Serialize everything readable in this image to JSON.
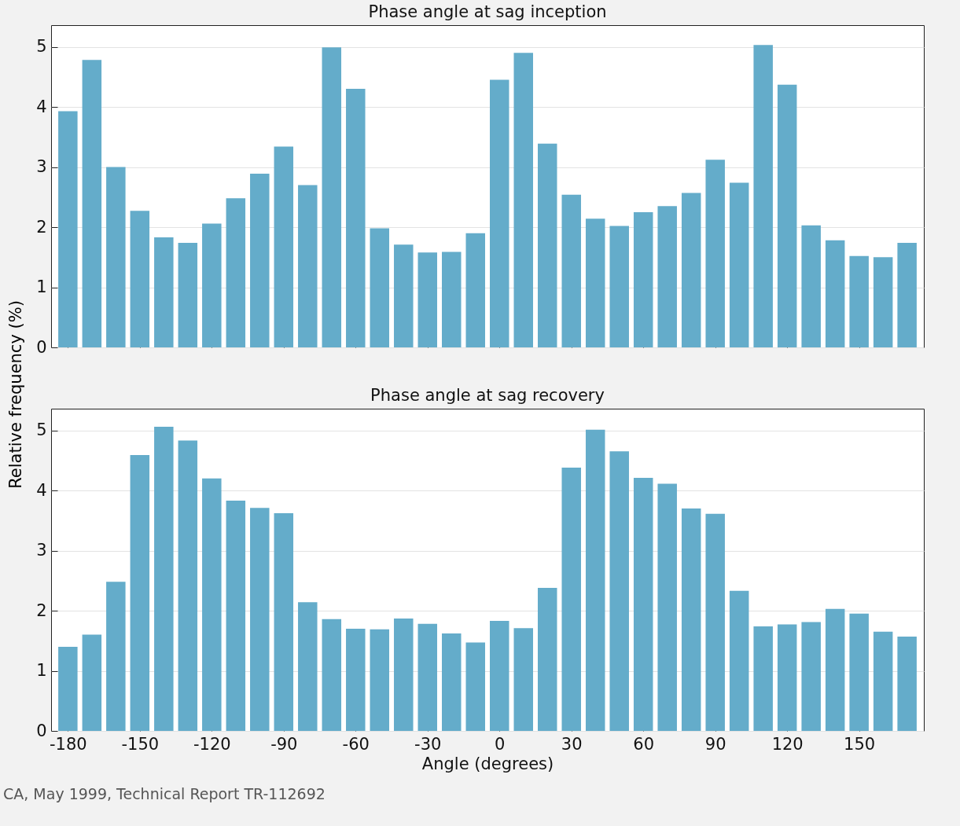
{
  "chart_data": [
    {
      "type": "bar",
      "title": "Phase angle at sag inception",
      "ylabel": "Relative frequency (%)",
      "x": [
        -180,
        -170,
        -160,
        -150,
        -140,
        -130,
        -120,
        -110,
        -100,
        -90,
        -80,
        -70,
        -60,
        -50,
        -40,
        -30,
        -20,
        -10,
        0,
        10,
        20,
        30,
        40,
        50,
        60,
        70,
        80,
        90,
        100,
        110,
        120,
        130,
        140,
        150,
        160,
        170
      ],
      "values": [
        3.93,
        4.78,
        3.0,
        2.27,
        1.83,
        1.74,
        2.06,
        2.48,
        2.89,
        3.34,
        2.7,
        4.99,
        4.3,
        1.98,
        1.71,
        1.58,
        1.59,
        1.9,
        4.45,
        4.9,
        3.39,
        2.54,
        2.14,
        2.02,
        2.25,
        2.35,
        2.57,
        3.12,
        2.74,
        5.03,
        4.37,
        2.03,
        1.78,
        1.52,
        1.5,
        1.74
      ],
      "color": "#64acca",
      "xlim": [
        -187,
        177
      ],
      "xticks": [
        -180,
        -150,
        -120,
        -90,
        -60,
        -30,
        0,
        30,
        60,
        90,
        120,
        150
      ],
      "ylim": [
        0,
        5.36
      ],
      "yticks": [
        0,
        1,
        2,
        3,
        4,
        5
      ],
      "grid": "y",
      "tick_labels": "y"
    },
    {
      "type": "bar",
      "title": "Phase angle at sag recovery",
      "xlabel": "Angle (degrees)",
      "x": [
        -180,
        -170,
        -160,
        -150,
        -140,
        -130,
        -120,
        -110,
        -100,
        -90,
        -80,
        -70,
        -60,
        -50,
        -40,
        -30,
        -20,
        -10,
        0,
        10,
        20,
        30,
        40,
        50,
        60,
        70,
        80,
        90,
        100,
        110,
        120,
        130,
        140,
        150,
        160,
        170
      ],
      "values": [
        1.4,
        1.6,
        2.48,
        4.59,
        5.06,
        4.83,
        4.2,
        3.83,
        3.71,
        3.62,
        2.14,
        1.86,
        1.7,
        1.69,
        1.87,
        1.78,
        1.62,
        1.47,
        1.83,
        1.71,
        2.38,
        4.38,
        5.01,
        4.65,
        4.21,
        4.11,
        3.7,
        3.61,
        2.33,
        1.74,
        1.77,
        1.81,
        2.03,
        1.95,
        1.65,
        1.57
      ],
      "color": "#64acca",
      "xlim": [
        -187,
        177
      ],
      "xticks": [
        -180,
        -150,
        -120,
        -90,
        -60,
        -30,
        0,
        30,
        60,
        90,
        120,
        150
      ],
      "ylim": [
        0,
        5.36
      ],
      "yticks": [
        0,
        1,
        2,
        3,
        4,
        5
      ],
      "grid": "y",
      "annotations": [
        "CA, May 1999, Technical Report TR-112692"
      ]
    }
  ]
}
